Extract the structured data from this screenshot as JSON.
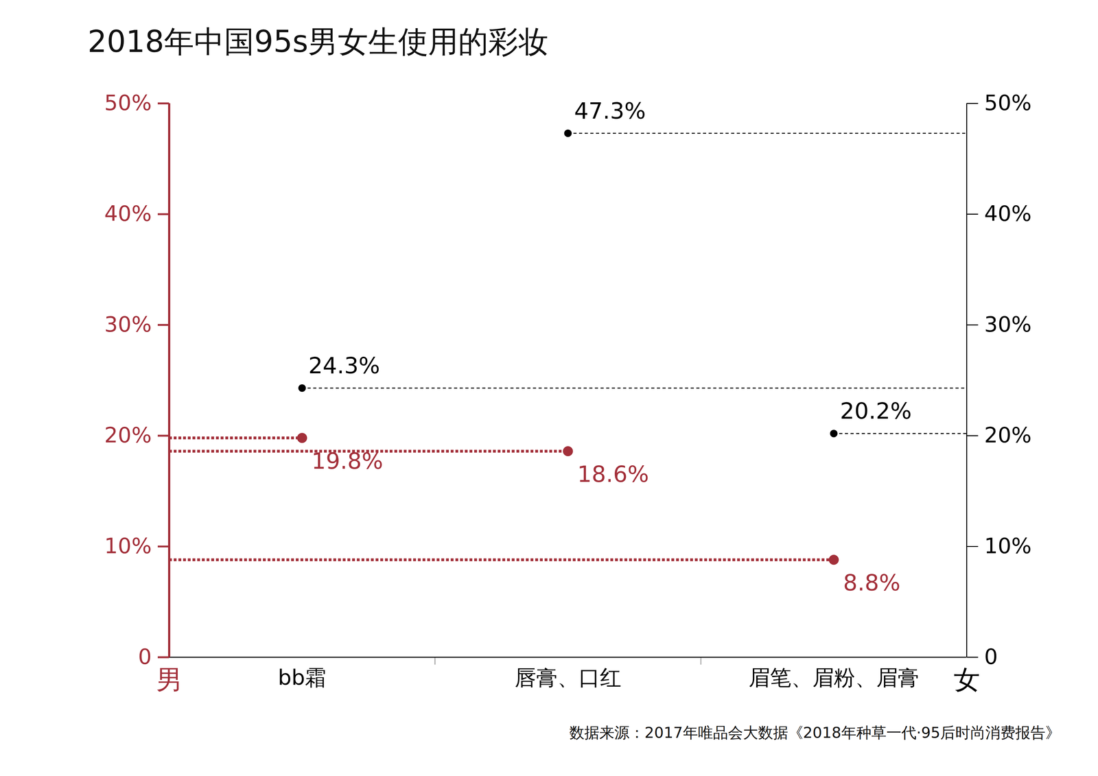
{
  "chart_data": {
    "type": "dot",
    "title": "2018年中国95s男女生使用的彩妆",
    "source": "数据来源：2017年唯品会大数据《2018年种草一代·95后时尚消费报告》",
    "categories": [
      "bb霜",
      "唇膏、口红",
      "眉笔、眉粉、眉膏"
    ],
    "series": [
      {
        "name": "男",
        "color": "#a3303a",
        "values": [
          19.8,
          18.6,
          8.8
        ],
        "value_labels": [
          "19.8%",
          "18.6%",
          "8.8%"
        ]
      },
      {
        "name": "女",
        "color": "#000000",
        "axis": "y2",
        "values": [
          24.3,
          47.3,
          20.2
        ],
        "value_labels": [
          "24.3%",
          "47.3%",
          "20.2%"
        ]
      }
    ],
    "ylim": [
      0,
      50
    ],
    "yticks": [
      0,
      {
        "value": 10,
        "label": "10%"
      },
      {
        "value": 20,
        "label": "20%"
      },
      {
        "value": 30,
        "label": "30%"
      },
      {
        "value": 40,
        "label": "40%"
      },
      {
        "value": 50,
        "label": "50%"
      }
    ],
    "y2lim": [
      0,
      50
    ],
    "y2ticks": [
      0,
      {
        "value": 10,
        "label": "10%"
      },
      {
        "value": 20,
        "label": "20%"
      },
      {
        "value": 30,
        "label": "30%"
      },
      {
        "value": 40,
        "label": "40%"
      },
      {
        "value": 50,
        "label": "50%"
      }
    ],
    "grid": false,
    "data_labels": true
  }
}
